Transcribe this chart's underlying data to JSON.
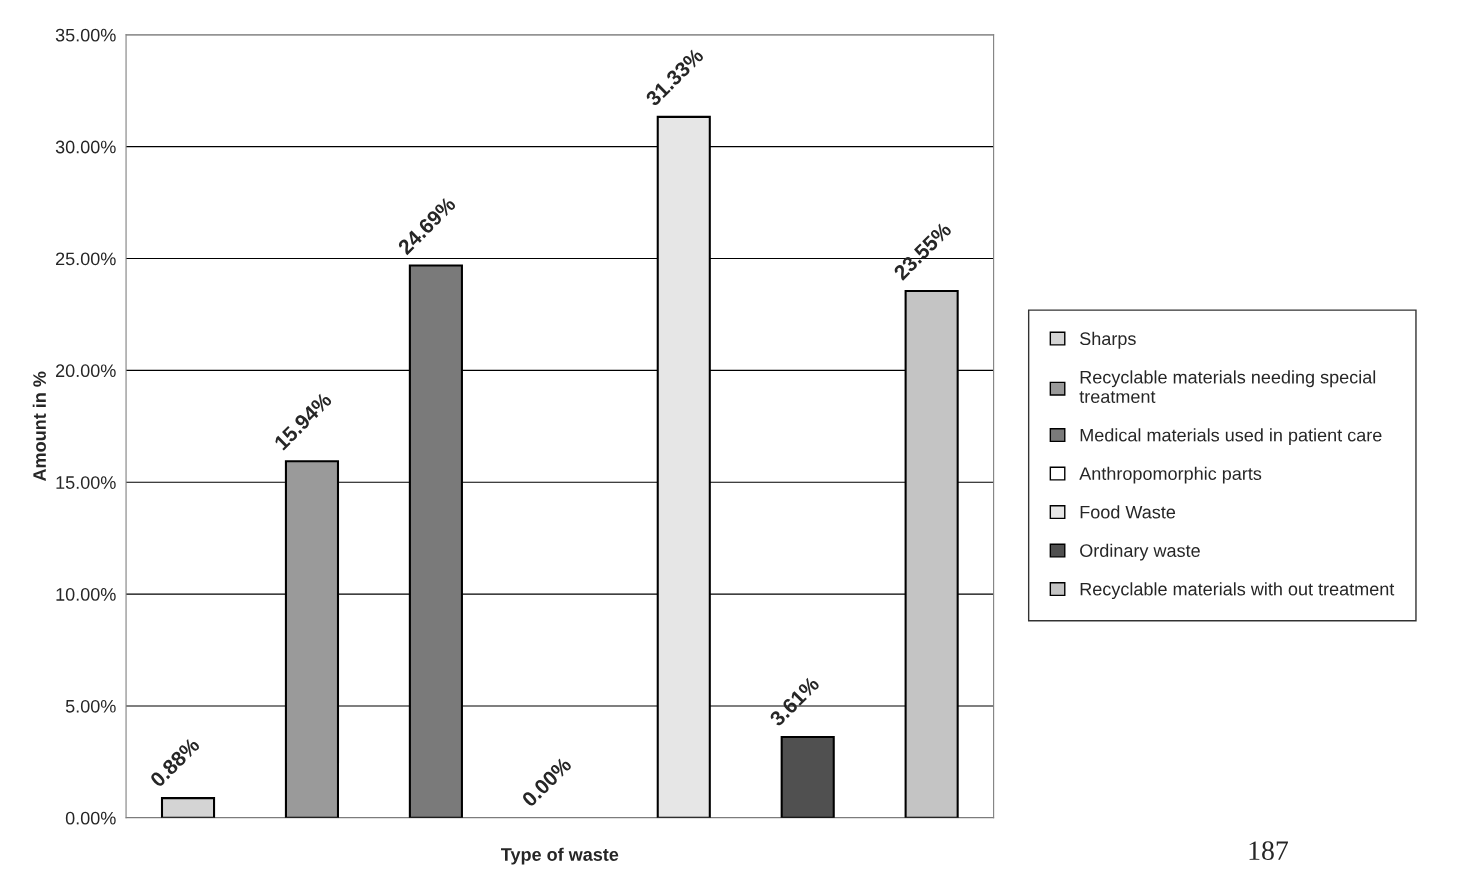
{
  "chart_data": {
    "type": "bar",
    "xlabel": "Type of waste",
    "ylabel": "Amount in %",
    "categories": [
      null,
      null,
      null,
      null,
      null,
      null,
      null
    ],
    "series": [
      {
        "name": "Sharps",
        "color": "#d4d4d4",
        "values": [
          0.88,
          null,
          null,
          null,
          null,
          null,
          null
        ],
        "value_labels": [
          "0.88%",
          null,
          null,
          null,
          null,
          null,
          null
        ]
      },
      {
        "name": "Recyclable materials needing special treatment",
        "color": "#9a9a9a",
        "values": [
          null,
          15.94,
          null,
          null,
          null,
          null,
          null
        ],
        "value_labels": [
          null,
          "15.94%",
          null,
          null,
          null,
          null,
          null
        ]
      },
      {
        "name": "Medical materials used in patient care",
        "color": "#7a7a7a",
        "values": [
          null,
          null,
          24.69,
          null,
          null,
          null,
          null
        ],
        "value_labels": [
          null,
          null,
          "24.69%",
          null,
          null,
          null,
          null
        ]
      },
      {
        "name": "Anthropomorphic parts",
        "color": "#ffffff",
        "values": [
          null,
          null,
          null,
          0.0,
          null,
          null,
          null
        ],
        "value_labels": [
          null,
          null,
          null,
          "0.00%",
          null,
          null,
          null
        ]
      },
      {
        "name": "Food Waste",
        "color": "#e6e6e6",
        "values": [
          null,
          null,
          null,
          null,
          31.33,
          null,
          null
        ],
        "value_labels": [
          null,
          null,
          null,
          null,
          "31.33%",
          null,
          null
        ]
      },
      {
        "name": "Ordinary waste",
        "color": "#505050",
        "values": [
          null,
          null,
          null,
          null,
          null,
          3.61,
          null
        ],
        "value_labels": [
          null,
          null,
          null,
          null,
          null,
          "3.61%",
          null
        ]
      },
      {
        "name": "Recyclable materials with out treatment",
        "color": "#c4c4c4",
        "values": [
          null,
          null,
          null,
          null,
          null,
          null,
          23.55
        ],
        "value_labels": [
          null,
          null,
          null,
          null,
          null,
          null,
          "23.55%"
        ]
      }
    ],
    "ylim": [
      0,
      35
    ],
    "yticks": [
      {
        "value": 0,
        "label": "0.00%"
      },
      {
        "value": 5,
        "label": "5.00%"
      },
      {
        "value": 10,
        "label": "10.00%"
      },
      {
        "value": 15,
        "label": "15.00%"
      },
      {
        "value": 20,
        "label": "20.00%"
      },
      {
        "value": 25,
        "label": "25.00%"
      },
      {
        "value": 30,
        "label": "30.00%"
      },
      {
        "value": 35,
        "label": "35.00%"
      }
    ],
    "grid": "y",
    "legend": "right",
    "annotations": [
      "187"
    ]
  }
}
